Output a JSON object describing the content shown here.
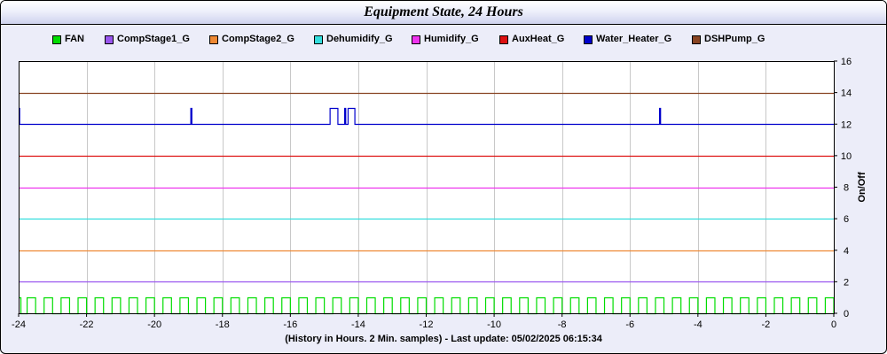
{
  "title": "Equipment State, 24 Hours",
  "footer": "(History in Hours. 2 Min. samples) - Last update: 05/02/2025 06:15:34",
  "chart_data": {
    "type": "line",
    "title": "Equipment State, 24 Hours",
    "xlabel": "(History in Hours. 2 Min. samples) - Last update: 05/02/2025 06:15:34",
    "ylabel": "On/Off",
    "y_axis_side": "right",
    "xlim": [
      -24,
      0
    ],
    "ylim": [
      0,
      16
    ],
    "x_ticks": [
      -24,
      -22,
      -20,
      -18,
      -16,
      -14,
      -12,
      -10,
      -8,
      -6,
      -4,
      -2,
      0
    ],
    "y_ticks": [
      0,
      2,
      4,
      6,
      8,
      10,
      12,
      14,
      16
    ],
    "grid": true,
    "legend_position": "top",
    "series": [
      {
        "name": "FAN",
        "color": "#00dd00",
        "baseline": 0,
        "on_value": 1,
        "periodic": {
          "start": -24,
          "end": 0,
          "period": 0.5,
          "on_duration": 0.25,
          "initial_on": 0.067
        }
      },
      {
        "name": "CompStage1_G",
        "color": "#9955ee",
        "baseline": 2,
        "on_value": 3,
        "on_intervals": []
      },
      {
        "name": "CompStage2_G",
        "color": "#ee8833",
        "baseline": 4,
        "on_value": 5,
        "on_intervals": []
      },
      {
        "name": "Dehumidify_G",
        "color": "#33dddd",
        "baseline": 6,
        "on_value": 7,
        "on_intervals": []
      },
      {
        "name": "Humidify_G",
        "color": "#ee33ee",
        "baseline": 8,
        "on_value": 9,
        "on_intervals": []
      },
      {
        "name": "AuxHeat_G",
        "color": "#dd1111",
        "baseline": 10,
        "on_value": 11,
        "on_intervals": []
      },
      {
        "name": "Water_Heater_G",
        "color": "#0000cc",
        "baseline": 12,
        "on_value": 13,
        "on_intervals": [
          [
            -24.0,
            -23.97
          ],
          [
            -18.93,
            -18.9
          ],
          [
            -14.83,
            -14.6
          ],
          [
            -14.4,
            -14.37
          ],
          [
            -14.3,
            -14.1
          ],
          [
            -5.13,
            -5.1
          ]
        ]
      },
      {
        "name": "DSHPump_G",
        "color": "#884422",
        "baseline": 14,
        "on_value": 15,
        "on_intervals": []
      }
    ]
  }
}
